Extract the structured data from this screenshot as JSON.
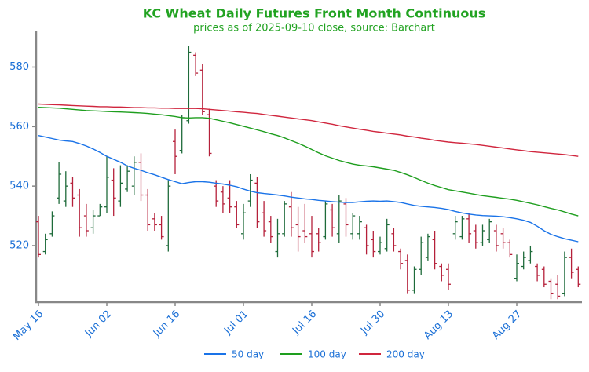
{
  "chart_data": {
    "type": "ohlc",
    "title": "KC Wheat Daily Futures Front Month Continuous",
    "subtitle": "prices as of 2025-09-10 close, source: Barchart",
    "categories": [
      "May 16",
      null,
      null,
      null,
      null,
      null,
      null,
      null,
      null,
      null,
      "Jun 02",
      null,
      null,
      null,
      null,
      null,
      null,
      null,
      null,
      null,
      "Jun 16",
      null,
      null,
      null,
      null,
      null,
      null,
      null,
      null,
      null,
      "Jul 01",
      null,
      null,
      null,
      null,
      null,
      null,
      null,
      null,
      null,
      "Jul 16",
      null,
      null,
      null,
      null,
      null,
      null,
      null,
      null,
      null,
      "Jul 30",
      null,
      null,
      null,
      null,
      null,
      null,
      null,
      null,
      null,
      "Aug 13",
      null,
      null,
      null,
      null,
      null,
      null,
      null,
      null,
      null,
      "Aug 27",
      null,
      null,
      null,
      null,
      null,
      null,
      null,
      null,
      null
    ],
    "ohlc": {
      "up_color": "#1e6b3a",
      "down_color": "#b5203a",
      "open": [
        528,
        518,
        524,
        536,
        535,
        541,
        537,
        530,
        526,
        530,
        533,
        542,
        535,
        539,
        540,
        548,
        537,
        529,
        527,
        520,
        555,
        552,
        562,
        584,
        579,
        564,
        540,
        538,
        536,
        533,
        524,
        535,
        541,
        531,
        528,
        518,
        524,
        533,
        527,
        525,
        524,
        524,
        523,
        532,
        524,
        534,
        524,
        524,
        526,
        522,
        518,
        519,
        524,
        518,
        515,
        505,
        512,
        516,
        522,
        513,
        512,
        524,
        523,
        529,
        525,
        521,
        522,
        525,
        524,
        521,
        509,
        513,
        515,
        513,
        512,
        508,
        507,
        504,
        516,
        512
      ],
      "high": [
        530,
        524,
        531.5,
        548,
        545,
        543,
        539,
        534,
        532,
        534,
        550,
        546,
        547,
        547,
        550,
        551,
        539,
        531,
        530,
        542,
        559,
        564,
        587,
        585,
        581,
        566,
        542,
        540,
        542,
        535,
        534,
        544,
        543,
        535,
        530,
        529,
        535,
        538,
        533,
        534,
        530,
        526,
        535,
        534,
        537,
        536,
        531,
        530,
        527,
        525,
        523,
        529,
        526,
        519,
        517,
        513,
        523,
        524,
        525,
        514,
        514,
        530,
        530,
        531,
        527,
        527,
        529,
        527,
        526,
        522,
        517,
        518,
        520,
        514,
        513,
        509,
        510,
        518,
        519,
        513
      ],
      "low": [
        516,
        517,
        523,
        534,
        533,
        533,
        523,
        523,
        524,
        530,
        531,
        530,
        533,
        538,
        537,
        535,
        525,
        525,
        522,
        518,
        544,
        551,
        561,
        577,
        564,
        550,
        533,
        531,
        531,
        526,
        522,
        533,
        526,
        523,
        521,
        516,
        523,
        523,
        518,
        521,
        516,
        518,
        522,
        523,
        521,
        523,
        522,
        522,
        517,
        516,
        517,
        518,
        518,
        512,
        504,
        504,
        510,
        515,
        512,
        508,
        505,
        522,
        522,
        521,
        519,
        520,
        521,
        518,
        519,
        516,
        508,
        512,
        514,
        508,
        506,
        502,
        502,
        503,
        509,
        506
      ],
      "close": [
        517,
        522,
        530,
        544,
        540,
        536,
        526,
        525,
        530,
        533,
        543,
        536,
        541,
        545,
        548,
        537,
        527,
        527,
        523,
        540,
        550,
        563,
        585,
        578,
        565,
        551,
        535,
        534,
        533,
        527,
        531,
        542,
        528,
        525,
        523,
        524,
        534,
        526,
        523,
        523,
        518,
        521,
        534,
        526,
        535,
        527,
        530,
        528,
        520,
        518,
        521,
        527,
        520,
        514,
        505,
        512,
        521,
        523,
        514,
        510,
        507,
        528,
        529,
        524,
        521,
        525,
        528,
        520,
        521,
        517,
        514,
        516,
        518,
        510,
        507,
        504,
        503,
        516,
        511,
        507
      ]
    },
    "series": [
      {
        "name": "50 day",
        "color": "#1a73e8",
        "values": [
          557,
          556.5,
          556,
          555.5,
          555.2,
          555,
          554.3,
          553.5,
          552.5,
          551.3,
          550,
          549,
          548,
          546.8,
          546,
          545.3,
          544.5,
          543.8,
          543,
          542.2,
          541.5,
          540.8,
          541.2,
          541.5,
          541.5,
          541.3,
          541,
          540.7,
          540.3,
          539.8,
          539,
          538.3,
          537.8,
          537.5,
          537.3,
          537,
          536.7,
          536.3,
          536,
          535.7,
          535.5,
          535.2,
          535,
          534.8,
          534.6,
          534.5,
          534.5,
          534.7,
          534.9,
          535,
          534.9,
          535,
          534.8,
          534.5,
          534,
          533.5,
          533.2,
          533,
          532.8,
          532.5,
          532.1,
          531.5,
          531,
          530.6,
          530.3,
          530.1,
          530,
          529.9,
          529.7,
          529.4,
          529,
          528.5,
          527.8,
          526.5,
          525,
          523.8,
          523,
          522.3,
          521.8,
          521.3
        ]
      },
      {
        "name": "100 day",
        "color": "#1e9e1e",
        "values": [
          566.5,
          566.4,
          566.3,
          566.2,
          566,
          565.8,
          565.6,
          565.4,
          565.3,
          565.2,
          565.1,
          565,
          564.9,
          564.8,
          564.7,
          564.6,
          564.4,
          564.2,
          564,
          563.7,
          563.4,
          563,
          562.9,
          563,
          563,
          562.8,
          562.3,
          561.8,
          561.3,
          560.7,
          560.1,
          559.5,
          558.9,
          558.3,
          557.6,
          557,
          556.2,
          555.3,
          554.4,
          553.4,
          552.3,
          551.2,
          550.2,
          549.4,
          548.6,
          548,
          547.4,
          547,
          546.8,
          546.5,
          546.1,
          545.7,
          545.3,
          544.6,
          543.8,
          542.9,
          541.9,
          541,
          540.2,
          539.5,
          538.8,
          538.4,
          538,
          537.6,
          537.2,
          536.8,
          536.5,
          536.2,
          535.9,
          535.6,
          535.2,
          534.7,
          534.2,
          533.7,
          533.1,
          532.5,
          532,
          531.3,
          530.6,
          530
        ]
      },
      {
        "name": "200 day",
        "color": "#d0263e",
        "values": [
          567.6,
          567.5,
          567.4,
          567.3,
          567.2,
          567.1,
          567,
          566.9,
          566.8,
          566.7,
          566.7,
          566.6,
          566.6,
          566.5,
          566.4,
          566.4,
          566.3,
          566.3,
          566.2,
          566.2,
          566.1,
          566.1,
          566.1,
          566.1,
          566,
          565.8,
          565.6,
          565.4,
          565.2,
          565,
          564.8,
          564.6,
          564.4,
          564.1,
          563.8,
          563.5,
          563.2,
          562.9,
          562.6,
          562.3,
          562,
          561.6,
          561.2,
          560.8,
          560.3,
          559.9,
          559.5,
          559.1,
          558.8,
          558.4,
          558.1,
          557.8,
          557.5,
          557.2,
          556.8,
          556.5,
          556.1,
          555.8,
          555.4,
          555.1,
          554.8,
          554.6,
          554.4,
          554.2,
          554,
          553.7,
          553.4,
          553.1,
          552.8,
          552.5,
          552.2,
          551.9,
          551.6,
          551.4,
          551.2,
          551,
          550.8,
          550.6,
          550.3,
          550
        ]
      }
    ],
    "ylim": [
      501,
      592
    ],
    "yticks": [
      520,
      540,
      560,
      580
    ],
    "title_color": "#22a322"
  }
}
